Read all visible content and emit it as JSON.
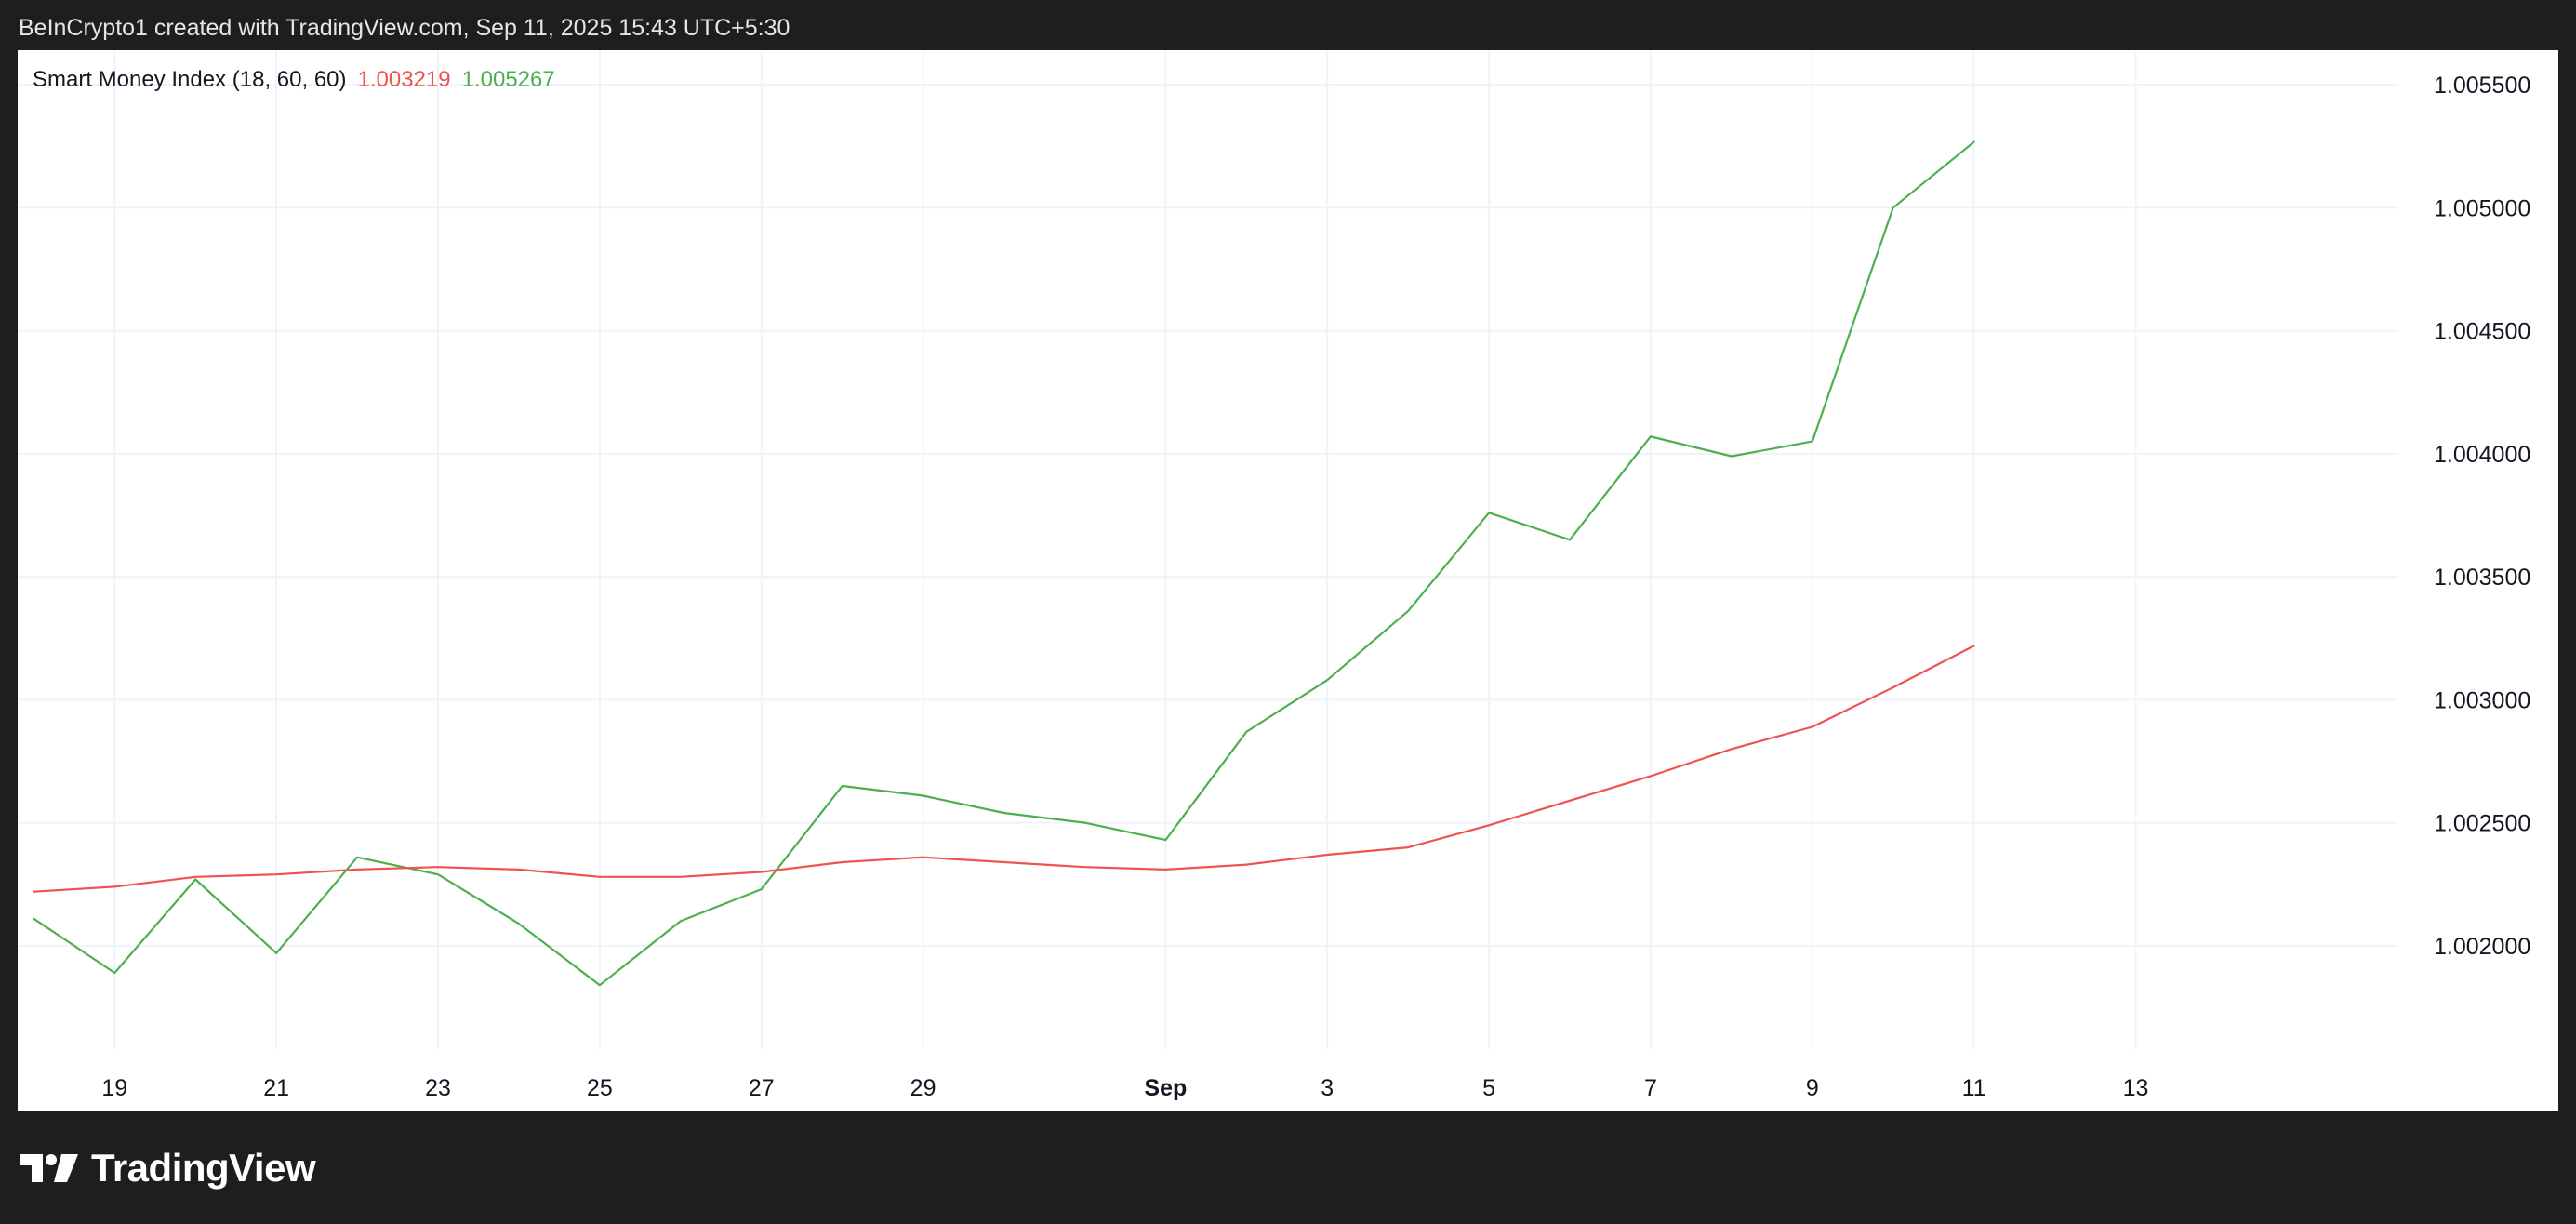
{
  "header": {
    "caption": "BeInCrypto1 created with TradingView.com, Sep 11, 2025 15:43 UTC+5:30"
  },
  "legend": {
    "indicator": "Smart Money Index (18, 60, 60)",
    "value_red": "1.003219",
    "value_green": "1.005267"
  },
  "footer": {
    "brand": "TradingView",
    "logo_icon": "tradingview-logo-icon"
  },
  "colors": {
    "green": "#4caf50",
    "red": "#ef5350",
    "grid": "#f0f3fa",
    "axis_text": "#131722",
    "background": "#ffffff",
    "frame": "#1e1e1e"
  },
  "chart_data": {
    "type": "line",
    "x": [
      "Aug 18",
      "Aug 19",
      "Aug 20",
      "Aug 21",
      "Aug 22",
      "Aug 23",
      "Aug 24",
      "Aug 25",
      "Aug 26",
      "Aug 27",
      "Aug 28",
      "Aug 29",
      "Aug 30",
      "Aug 31",
      "Sep 1",
      "Sep 2",
      "Sep 3",
      "Sep 4",
      "Sep 5",
      "Sep 6",
      "Sep 7",
      "Sep 8",
      "Sep 9",
      "Sep 10",
      "Sep 11"
    ],
    "series": [
      {
        "color": "#4caf50",
        "values": [
          1.00211,
          1.00189,
          1.00227,
          1.00197,
          1.00236,
          1.00229,
          1.00209,
          1.00184,
          1.0021,
          1.00223,
          1.00265,
          1.00261,
          1.00254,
          1.0025,
          1.00243,
          1.00287,
          1.00308,
          1.00336,
          1.00376,
          1.00365,
          1.00407,
          1.00399,
          1.00405,
          1.005,
          1.005267
        ]
      },
      {
        "color": "#ef5350",
        "values": [
          1.00222,
          1.00224,
          1.00228,
          1.00229,
          1.00231,
          1.00232,
          1.00231,
          1.00228,
          1.00228,
          1.0023,
          1.00234,
          1.00236,
          1.00234,
          1.00232,
          1.00231,
          1.00233,
          1.00237,
          1.0024,
          1.00249,
          1.00259,
          1.00269,
          1.0028,
          1.00289,
          1.00305,
          1.003219
        ]
      }
    ],
    "x_ticks": [
      {
        "label": "19",
        "day": 1,
        "bold": false
      },
      {
        "label": "21",
        "day": 3,
        "bold": false
      },
      {
        "label": "23",
        "day": 5,
        "bold": false
      },
      {
        "label": "25",
        "day": 7,
        "bold": false
      },
      {
        "label": "27",
        "day": 9,
        "bold": false
      },
      {
        "label": "29",
        "day": 11,
        "bold": false
      },
      {
        "label": "Sep",
        "day": 14,
        "bold": true
      },
      {
        "label": "3",
        "day": 16,
        "bold": false
      },
      {
        "label": "5",
        "day": 18,
        "bold": false
      },
      {
        "label": "7",
        "day": 20,
        "bold": false
      },
      {
        "label": "9",
        "day": 22,
        "bold": false
      },
      {
        "label": "11",
        "day": 24,
        "bold": false
      },
      {
        "label": "13",
        "day": 26,
        "bold": false
      }
    ],
    "y_ticks": [
      "1.002000",
      "1.002500",
      "1.003000",
      "1.003500",
      "1.004000",
      "1.004500",
      "1.005000",
      "1.005500"
    ],
    "ylim": [
      1.00158,
      1.00564
    ],
    "x_range_days": [
      -0.2,
      29.25
    ],
    "y_axis_position": "right",
    "grid": true
  }
}
